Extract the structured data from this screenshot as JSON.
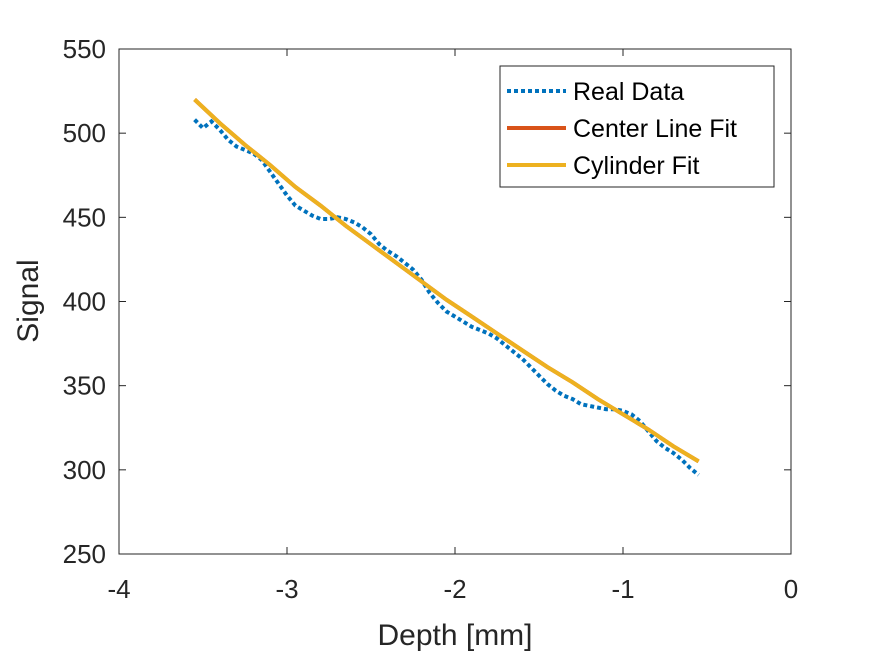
{
  "chart_data": {
    "type": "line",
    "xlabel": "Depth [mm]",
    "ylabel": "Signal",
    "xlim": [
      -4,
      0
    ],
    "ylim": [
      250,
      550
    ],
    "xticks": [
      -4,
      -3,
      -2,
      -1,
      0
    ],
    "yticks": [
      250,
      300,
      350,
      400,
      450,
      500,
      550
    ],
    "xtick_labels": [
      "-4",
      "-3",
      "-2",
      "-1",
      "0"
    ],
    "ytick_labels": [
      "250",
      "300",
      "350",
      "400",
      "450",
      "500",
      "550"
    ],
    "grid": false,
    "legend_position": "top-right",
    "series": [
      {
        "name": "Real Data",
        "color": "#0072BD",
        "style": "dotted",
        "x": [
          -3.55,
          -3.5,
          -3.45,
          -3.4,
          -3.35,
          -3.3,
          -3.25,
          -3.2,
          -3.15,
          -3.1,
          -3.05,
          -3.0,
          -2.95,
          -2.9,
          -2.85,
          -2.8,
          -2.75,
          -2.7,
          -2.65,
          -2.6,
          -2.55,
          -2.5,
          -2.45,
          -2.4,
          -2.35,
          -2.3,
          -2.25,
          -2.2,
          -2.15,
          -2.1,
          -2.05,
          -2.0,
          -1.95,
          -1.9,
          -1.85,
          -1.8,
          -1.75,
          -1.7,
          -1.65,
          -1.6,
          -1.55,
          -1.5,
          -1.45,
          -1.4,
          -1.35,
          -1.3,
          -1.25,
          -1.2,
          -1.15,
          -1.1,
          -1.05,
          -1.0,
          -0.95,
          -0.9,
          -0.85,
          -0.8,
          -0.75,
          -0.7,
          -0.65,
          -0.6,
          -0.55
        ],
        "y": [
          508,
          503,
          507,
          502,
          496,
          492,
          490,
          488,
          484,
          477,
          470,
          463,
          457,
          454,
          451,
          449,
          449,
          450,
          449,
          447,
          444,
          440,
          434,
          430,
          427,
          423,
          419,
          413,
          405,
          399,
          394,
          391,
          388,
          385,
          383,
          381,
          378,
          374,
          370,
          366,
          361,
          356,
          351,
          347,
          344,
          342,
          339,
          338,
          337,
          336,
          336,
          335,
          333,
          329,
          323,
          317,
          313,
          310,
          306,
          301,
          297
        ]
      },
      {
        "name": "Center Line Fit",
        "color": "#D95319",
        "style": "solid",
        "x": [
          -3.55,
          -3.4,
          -3.25,
          -3.1,
          -2.95,
          -2.8,
          -2.65,
          -2.5,
          -2.35,
          -2.2,
          -2.05,
          -1.9,
          -1.75,
          -1.6,
          -1.45,
          -1.3,
          -1.15,
          -1.0,
          -0.85,
          -0.7,
          -0.55
        ],
        "y": [
          520,
          506,
          493,
          481,
          468,
          457,
          445,
          434,
          423,
          412,
          401,
          391,
          381,
          371,
          361,
          352,
          342,
          333,
          324,
          314,
          305
        ]
      },
      {
        "name": "Cylinder Fit",
        "color": "#EDB120",
        "style": "solid",
        "x": [
          -3.55,
          -3.4,
          -3.25,
          -3.1,
          -2.95,
          -2.8,
          -2.65,
          -2.5,
          -2.35,
          -2.2,
          -2.05,
          -1.9,
          -1.75,
          -1.6,
          -1.45,
          -1.3,
          -1.15,
          -1.0,
          -0.85,
          -0.7,
          -0.55
        ],
        "y": [
          520,
          506,
          493,
          481,
          468,
          457,
          445,
          434,
          423,
          412,
          401,
          391,
          381,
          371,
          361,
          352,
          342,
          333,
          324,
          314,
          305
        ]
      }
    ]
  }
}
